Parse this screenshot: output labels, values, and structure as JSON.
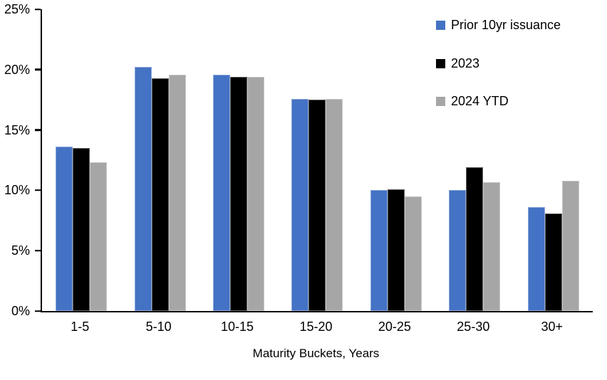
{
  "chart_data": {
    "type": "bar",
    "title": "",
    "xlabel": "Maturity Buckets, Years",
    "ylabel": "",
    "ylim": [
      0,
      25
    ],
    "yticks": [
      0,
      5,
      10,
      15,
      20,
      25
    ],
    "ytick_suffix": "%",
    "grid": false,
    "legend_position": "top-right-inside",
    "categories": [
      "1-5",
      "5-10",
      "10-15",
      "15-20",
      "20-25",
      "25-30",
      "30+"
    ],
    "series": [
      {
        "name": "Prior 10yr issuance",
        "color": "#4472C4",
        "values": [
          13.6,
          20.2,
          19.6,
          17.6,
          10.0,
          10.0,
          8.6
        ]
      },
      {
        "name": "2023",
        "color": "#000000",
        "values": [
          13.5,
          19.3,
          19.4,
          17.5,
          10.1,
          11.9,
          8.1
        ]
      },
      {
        "name": "2024 YTD",
        "color": "#A6A6A6",
        "values": [
          12.3,
          19.6,
          19.4,
          17.6,
          9.5,
          10.7,
          10.8
        ]
      }
    ]
  }
}
